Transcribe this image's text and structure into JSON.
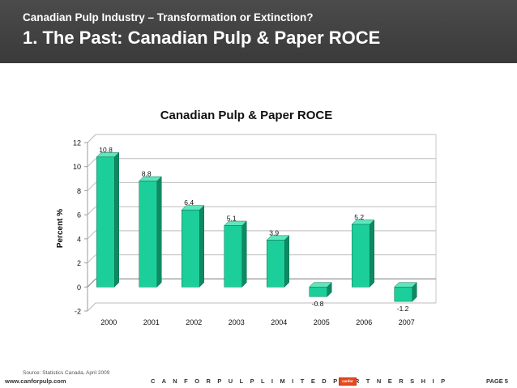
{
  "header": {
    "subtitle": "Canadian Pulp Industry – Transformation or Extinction?",
    "title": "1.  The Past:  Canadian Pulp & Paper ROCE"
  },
  "chart_data": {
    "type": "bar",
    "title": "Canadian Pulp & Paper ROCE",
    "ylabel": "Percent %",
    "xlabel": "",
    "categories": [
      "2000",
      "2001",
      "2002",
      "2003",
      "2004",
      "2005",
      "2006",
      "2007"
    ],
    "values": [
      10.8,
      8.8,
      6.4,
      5.1,
      3.9,
      -0.8,
      5.2,
      -1.2
    ],
    "data_labels": [
      "10.8",
      "8.8",
      "6.4",
      "5.1",
      "3.9",
      "-0.8",
      "5.2",
      "-1.2"
    ],
    "ylim": [
      -2,
      12
    ],
    "yticks": [
      "-2",
      "0",
      "2",
      "4",
      "6",
      "8",
      "10",
      "12"
    ],
    "grid": true,
    "bar_color": "#1ccf9a",
    "bar_side_color": "#0e8a63",
    "bar_top_color": "#5fe6bd"
  },
  "source": "Source:  Statistics Canada, April 2009",
  "footer": {
    "url": "www.canforpulp.com",
    "company": "C A N F O R   P U L P   L I M I T E D   P A R T N E R S H I P",
    "logo_text": "canfor",
    "page": "PAGE 5"
  }
}
